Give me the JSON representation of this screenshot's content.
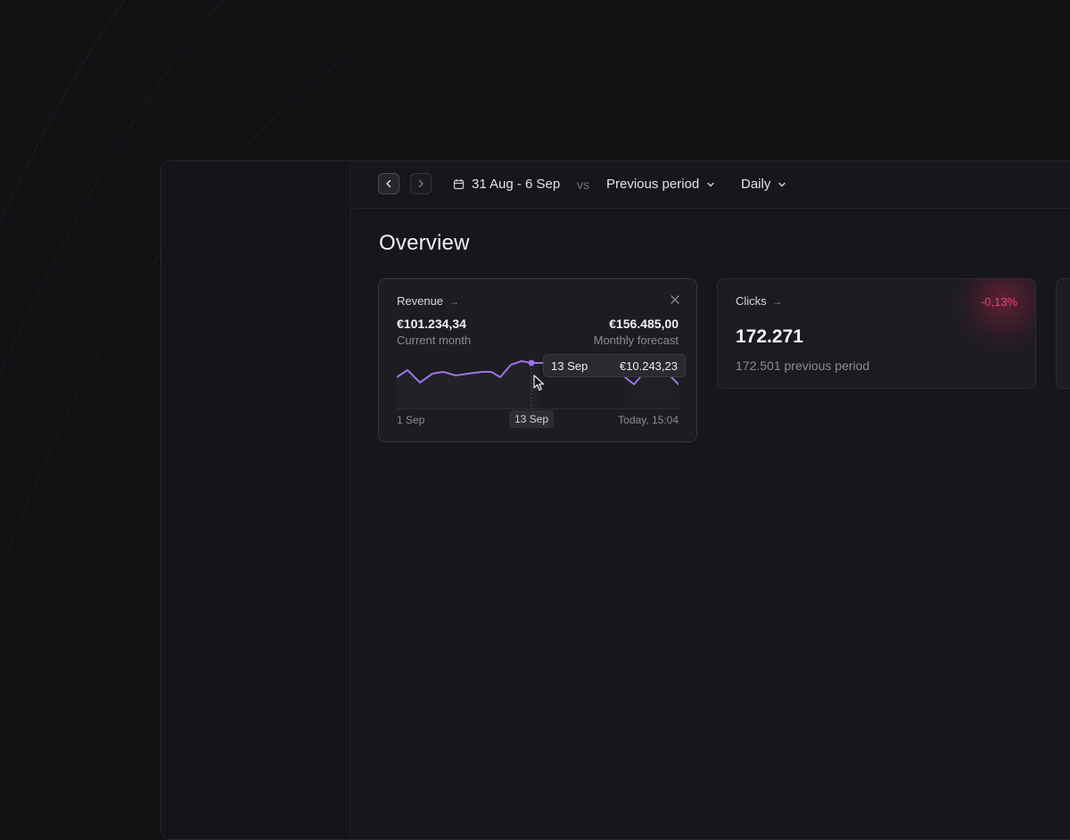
{
  "topbar": {
    "prev_icon": "chevron-left-icon",
    "next_icon": "chevron-right-icon",
    "date_icon": "calendar-icon",
    "date_range": "31 Aug - 6 Sep",
    "vs_label": "vs",
    "compare_label": "Previous period",
    "interval_label": "Daily"
  },
  "page": {
    "title": "Overview"
  },
  "revenue_card": {
    "title": "Revenue",
    "current_value": "€101.234,34",
    "current_label": "Current month",
    "forecast_value": "€156.485,00",
    "forecast_label": "Monthly forecast",
    "x_start": "1 Sep",
    "x_selected": "13 Sep",
    "x_end": "Today, 15:04",
    "tooltip": {
      "date": "13 Sep",
      "value": "€10.243,23"
    },
    "line_color": "#9b72e8"
  },
  "clicks_card": {
    "title": "Clicks",
    "delta": "-0,13%",
    "delta_color": "#f0436f",
    "value": "172.271",
    "previous": "172.501 previous period"
  }
}
